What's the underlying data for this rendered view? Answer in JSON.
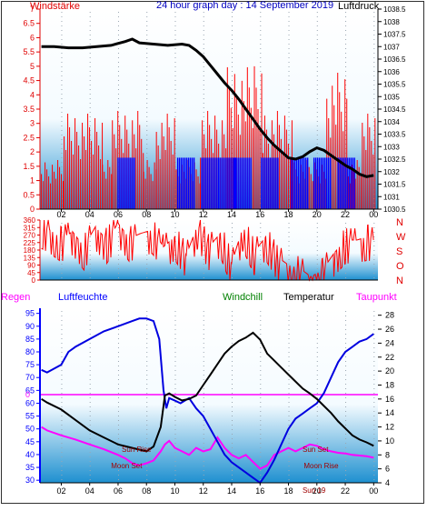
{
  "colors": {
    "wind_axis": "#e00000",
    "pressure_axis": "#000000",
    "humidity_axis": "#0000ff",
    "rain_axis": "#ff00ff",
    "temp_line": "#000000",
    "humidity_line": "#0000e0",
    "dewpoint_line": "#ff00ff",
    "windchill_label": "#008000",
    "wind_bar": "#ff0000",
    "gust_bar": "#0000ff",
    "moon_label": "#a00000",
    "sky_top": "#ffffff",
    "sky_bottom": "#1e90d0",
    "title": "#0000c0"
  },
  "chart_data": [
    {
      "type": "bar",
      "title": "24 hour graph day : 14 September 2019",
      "left_label": "Windstärke",
      "right_label": "Luftdruck",
      "x_ticks": [
        "02",
        "04",
        "06",
        "08",
        "10",
        "12",
        "14",
        "16",
        "18",
        "20",
        "22",
        "00"
      ],
      "y_left_ticks": [
        "7",
        "6.5",
        "6",
        "5.5",
        "5",
        "4.5",
        "4",
        "3.5",
        "3",
        "2.5",
        "2",
        "1.5",
        "1",
        "0.5",
        "0"
      ],
      "y_right_ticks": [
        "1038.5",
        "1038",
        "1037.5",
        "1037",
        "1036.5",
        "1036",
        "1035.5",
        "1035",
        "1034.5",
        "1034",
        "1033.5",
        "1033",
        "1032.5",
        "1032",
        "1031.5",
        "1031",
        "1030.5"
      ],
      "ylim_left": [
        0,
        7
      ],
      "ylim_right": [
        1030.5,
        1038.5
      ],
      "xlim_hours": [
        0.5,
        24.3
      ],
      "series": [
        {
          "name": "Windstärke",
          "points": [
            [
              0.6,
              1.8
            ],
            [
              2.2,
              3.5
            ],
            [
              4.9,
              1.8
            ],
            [
              5.6,
              3.6
            ],
            [
              7.8,
              1.8
            ],
            [
              8.7,
              3.5
            ],
            [
              10.1,
              1.8
            ],
            [
              11.8,
              3.6
            ],
            [
              13.7,
              5.2
            ],
            [
              15.6,
              5.5
            ],
            [
              16.2,
              3.6
            ],
            [
              18.3,
              1.8
            ],
            [
              20.7,
              5.0
            ],
            [
              22.2,
              1.8
            ],
            [
              23.2,
              3.5
            ]
          ]
        },
        {
          "name": "Böen",
          "points": [
            [
              6.0,
              1.8
            ],
            [
              10.2,
              1.8
            ],
            [
              11.9,
              1.8
            ],
            [
              13.1,
              1.8
            ],
            [
              14.2,
              1.8
            ],
            [
              16.1,
              1.8
            ],
            [
              18.2,
              1.8
            ],
            [
              19.8,
              1.8
            ],
            [
              21.5,
              1.8
            ]
          ]
        },
        {
          "name": "Luftdruck",
          "x": [
            0.6,
            1.5,
            2.5,
            3.5,
            4.5,
            5.5,
            6.5,
            7.0,
            7.5,
            8.5,
            9.5,
            10.5,
            11.0,
            11.5,
            12.0,
            12.5,
            13.0,
            13.5,
            14.0,
            14.5,
            15.0,
            15.5,
            16.0,
            16.5,
            17.0,
            17.5,
            18.0,
            18.5,
            19.0,
            19.5,
            20.0,
            20.5,
            21.0,
            21.5,
            22.0,
            22.5,
            23.0,
            23.5,
            24.0
          ],
          "values": [
            1037.0,
            1037.0,
            1036.95,
            1036.95,
            1037.0,
            1037.05,
            1037.2,
            1037.3,
            1037.15,
            1037.1,
            1037.05,
            1037.1,
            1037.05,
            1036.85,
            1036.6,
            1036.25,
            1035.9,
            1035.55,
            1035.25,
            1034.9,
            1034.5,
            1034.1,
            1033.7,
            1033.35,
            1033.05,
            1032.8,
            1032.55,
            1032.5,
            1032.6,
            1032.8,
            1032.95,
            1032.85,
            1032.65,
            1032.45,
            1032.25,
            1032.1,
            1031.9,
            1031.8,
            1031.85
          ]
        }
      ]
    },
    {
      "type": "line",
      "right_labels": [
        "N",
        "W",
        "S",
        "O",
        "N"
      ],
      "y_ticks": [
        "360",
        "315",
        "270",
        "225",
        "180",
        "135",
        "90",
        "45",
        "0"
      ],
      "ylim": [
        0,
        360
      ],
      "series": [
        {
          "name": "Windrichtung",
          "x": [
            0.6,
            1.2,
            2.0,
            2.8,
            3.6,
            4.4,
            5.2,
            6.0,
            6.8,
            7.6,
            8.4,
            9.2,
            10.0,
            10.8,
            11.6,
            12.4,
            13.2,
            14.0,
            14.8,
            15.6,
            16.4,
            17.2,
            18.0,
            18.8,
            19.6,
            20.4,
            21.2,
            22.0,
            22.8,
            23.6,
            24.0
          ],
          "values": [
            330,
            300,
            250,
            290,
            200,
            320,
            240,
            340,
            250,
            280,
            300,
            200,
            260,
            150,
            330,
            200,
            280,
            100,
            320,
            170,
            260,
            140,
            90,
            70,
            20,
            60,
            160,
            240,
            240,
            260,
            240
          ]
        }
      ]
    },
    {
      "type": "line",
      "labels": {
        "rain": "Regen",
        "humidity": "Luftfeuchte",
        "windchill": "Windchill",
        "temperature": "Temperatur",
        "dewpoint": "Taupunkt"
      },
      "rain_value_label": "0",
      "y_left_ticks": [
        "95",
        "90",
        "85",
        "80",
        "75",
        "70",
        "65",
        "60",
        "55",
        "50",
        "45",
        "40",
        "35",
        "30"
      ],
      "y_right_ticks": [
        "28",
        "26",
        "24",
        "22",
        "20",
        "18",
        "16",
        "14",
        "12",
        "10",
        "8",
        "6",
        "4"
      ],
      "ylim_left": [
        29,
        97
      ],
      "ylim_right": [
        4,
        29
      ],
      "x_ticks": [
        "02",
        "04",
        "06",
        "08",
        "10",
        "12",
        "14",
        "16",
        "18",
        "20",
        "22",
        "00"
      ],
      "events": [
        {
          "label": "Sun Rise",
          "hour": 7.3
        },
        {
          "label": "Moon Set",
          "hour": 6.6
        },
        {
          "label": "Sun Set",
          "hour": 19.9
        },
        {
          "label": "Moon Rise",
          "hour": 20.3
        },
        {
          "label": "Sun 19",
          "hour": 19.8
        }
      ],
      "series": [
        {
          "name": "Luftfeuchte",
          "x": [
            0.6,
            1.0,
            2.0,
            2.5,
            3.0,
            4.0,
            5.0,
            6.0,
            7.0,
            7.5,
            8.0,
            8.5,
            8.9,
            9.2,
            9.4,
            9.6,
            10.0,
            10.4,
            11.0,
            11.5,
            12.0,
            12.5,
            13.0,
            13.5,
            14.0,
            14.5,
            15.0,
            15.5,
            16.0,
            16.5,
            17.0,
            17.5,
            18.0,
            18.5,
            19.0,
            19.5,
            20.0,
            20.5,
            21.0,
            21.5,
            22.0,
            22.5,
            23.0,
            23.5,
            24.0
          ],
          "values": [
            73,
            72,
            75,
            80,
            82,
            85,
            88,
            90,
            92,
            93,
            93,
            92,
            85,
            65,
            58,
            62,
            61,
            60,
            62,
            58,
            55,
            50,
            45,
            40,
            37,
            35,
            33,
            31,
            29,
            33,
            38,
            44,
            50,
            54,
            56,
            58,
            60,
            64,
            70,
            76,
            80,
            82,
            84,
            85,
            87
          ]
        },
        {
          "name": "Temperatur",
          "x": [
            0.6,
            1.0,
            2.0,
            3.0,
            4.0,
            5.0,
            6.0,
            7.0,
            8.0,
            8.5,
            9.0,
            9.3,
            9.6,
            10.0,
            10.5,
            11.0,
            11.5,
            12.0,
            12.5,
            13.0,
            13.5,
            14.0,
            14.5,
            15.0,
            15.5,
            16.0,
            16.5,
            17.0,
            17.5,
            18.0,
            18.5,
            19.0,
            19.5,
            20.0,
            20.5,
            21.0,
            21.5,
            22.0,
            22.5,
            23.0,
            23.5,
            24.0
          ],
          "values": [
            16.0,
            15.5,
            14.5,
            13.0,
            11.5,
            10.5,
            9.5,
            9.0,
            8.5,
            9.2,
            12.0,
            16.5,
            16.8,
            16.3,
            15.8,
            16.0,
            16.5,
            18.0,
            19.5,
            21.0,
            22.5,
            23.5,
            24.3,
            24.8,
            25.5,
            24.5,
            22.5,
            21.5,
            20.5,
            19.5,
            18.5,
            17.5,
            16.8,
            16.0,
            15.0,
            14.0,
            12.8,
            11.8,
            10.8,
            10.2,
            9.8,
            9.3
          ]
        },
        {
          "name": "Taupunkt",
          "x": [
            0.6,
            1.0,
            2.0,
            3.0,
            4.0,
            5.0,
            6.0,
            6.5,
            7.0,
            7.5,
            8.0,
            8.5,
            9.0,
            9.3,
            9.6,
            10.0,
            10.5,
            11.0,
            11.5,
            12.0,
            12.5,
            13.0,
            13.5,
            14.0,
            14.5,
            15.0,
            15.5,
            16.0,
            16.5,
            17.0,
            17.5,
            18.0,
            18.5,
            19.0,
            19.5,
            20.0,
            20.5,
            21.0,
            21.5,
            22.0,
            22.5,
            23.0,
            23.5,
            24.0
          ],
          "values": [
            12.0,
            11.5,
            10.8,
            10.2,
            9.5,
            8.8,
            8.0,
            7.5,
            6.8,
            6.5,
            6.8,
            7.2,
            8.5,
            9.5,
            10.0,
            9.0,
            8.5,
            8.0,
            9.0,
            8.5,
            8.8,
            10.5,
            9.0,
            8.0,
            7.5,
            8.0,
            7.0,
            6.0,
            6.5,
            8.0,
            8.5,
            9.0,
            8.5,
            9.0,
            9.5,
            9.3,
            8.8,
            8.5,
            8.3,
            8.2,
            8.0,
            7.9,
            7.8,
            7.6
          ]
        }
      ]
    }
  ]
}
